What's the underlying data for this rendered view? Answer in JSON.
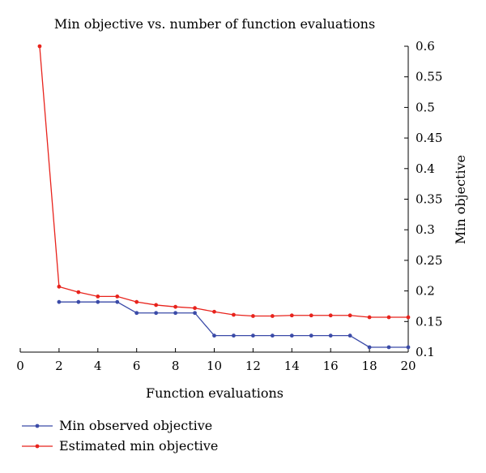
{
  "chart_data": {
    "type": "line",
    "title": "Min objective vs. number of function evaluations",
    "xlabel": "Function evaluations",
    "ylabel": "Min objective",
    "xlim": [
      0,
      20
    ],
    "ylim": [
      0.1,
      0.6
    ],
    "x_ticks": [
      0,
      2,
      4,
      6,
      8,
      10,
      12,
      14,
      16,
      18,
      20
    ],
    "y_ticks": [
      0.1,
      0.15,
      0.2,
      0.25,
      0.3,
      0.35,
      0.4,
      0.45,
      0.5,
      0.55,
      0.6
    ],
    "y_axis_side": "right",
    "grid": false,
    "legend_position": "bottom-left",
    "series": [
      {
        "name": "Min observed objective",
        "color": "#3b4ba8",
        "x": [
          2,
          3,
          4,
          5,
          6,
          7,
          8,
          9,
          10,
          11,
          12,
          13,
          14,
          15,
          16,
          17,
          18,
          19,
          20
        ],
        "y": [
          0.182,
          0.182,
          0.182,
          0.182,
          0.164,
          0.164,
          0.164,
          0.164,
          0.127,
          0.127,
          0.127,
          0.127,
          0.127,
          0.127,
          0.127,
          0.127,
          0.108,
          0.108,
          0.108
        ]
      },
      {
        "name": "Estimated min objective",
        "color": "#e8231c",
        "x": [
          1,
          2,
          3,
          4,
          5,
          6,
          7,
          8,
          9,
          10,
          11,
          12,
          13,
          14,
          15,
          16,
          17,
          18,
          19,
          20
        ],
        "y": [
          0.6,
          0.207,
          0.198,
          0.191,
          0.191,
          0.182,
          0.177,
          0.174,
          0.172,
          0.166,
          0.161,
          0.159,
          0.159,
          0.16,
          0.16,
          0.16,
          0.16,
          0.157,
          0.157,
          0.157
        ]
      }
    ]
  }
}
